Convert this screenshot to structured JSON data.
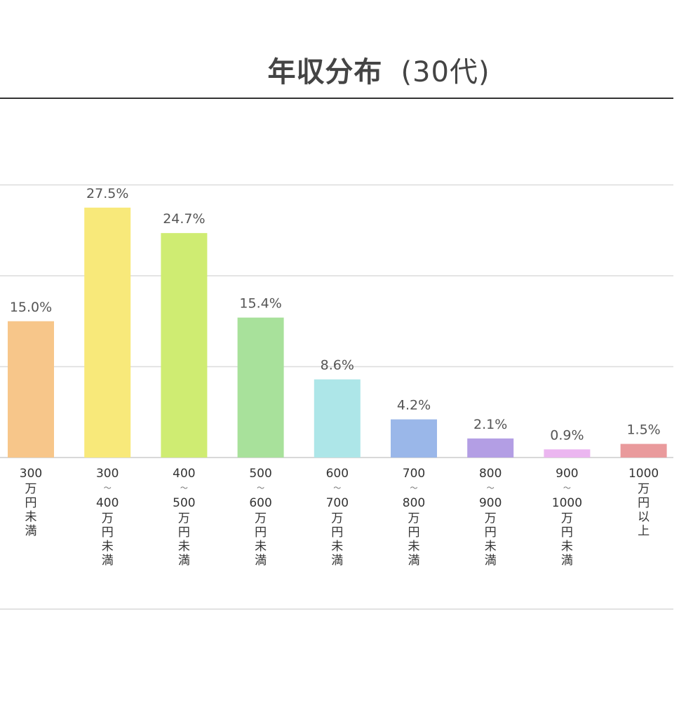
{
  "chart_data": {
    "type": "bar",
    "title": "年収分布",
    "subtitle": "(30代)",
    "xlabel": "",
    "ylabel": "",
    "unit": "%",
    "ylim": [
      0,
      30
    ],
    "grid": true,
    "categories": [
      {
        "top": "300",
        "bottom": "万円未満"
      },
      {
        "top": "300",
        "tilde": "〜",
        "mid": "400",
        "bottom": "万円未満"
      },
      {
        "top": "400",
        "tilde": "〜",
        "mid": "500",
        "bottom": "万円未満"
      },
      {
        "top": "500",
        "tilde": "〜",
        "mid": "600",
        "bottom": "万円未満"
      },
      {
        "top": "600",
        "tilde": "〜",
        "mid": "700",
        "bottom": "万円未満"
      },
      {
        "top": "700",
        "tilde": "〜",
        "mid": "800",
        "bottom": "万円未満"
      },
      {
        "top": "800",
        "tilde": "〜",
        "mid": "900",
        "bottom": "万円未満"
      },
      {
        "top": "900",
        "tilde": "〜",
        "mid": "1000",
        "bottom": "万円未満"
      },
      {
        "top": "1000",
        "bottom": "万円以上"
      }
    ],
    "values": [
      15.0,
      27.5,
      24.7,
      15.4,
      8.6,
      4.2,
      2.1,
      0.9,
      1.5
    ],
    "value_labels": [
      "15.0%",
      "27.5%",
      "24.7%",
      "15.4%",
      "8.6%",
      "4.2%",
      "2.1%",
      "0.9%",
      "1.5%"
    ],
    "colors": [
      "#f7c68a",
      "#f8e97a",
      "#cfec72",
      "#a8e19b",
      "#ade6e8",
      "#9ab7e9",
      "#b39ee4",
      "#ebb6f0",
      "#e99a9c"
    ]
  }
}
